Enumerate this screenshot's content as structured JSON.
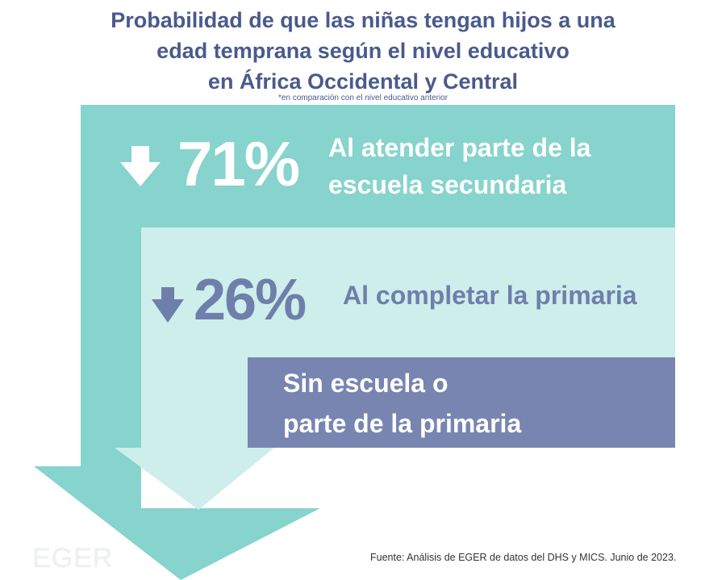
{
  "title": {
    "line1": "Probabilidad de que las niñas tengan hijos a una",
    "line2": "edad temprana según el nivel educativo",
    "line3": "en África Occidental y Central"
  },
  "subtitle": "*en comparación con el nivel educativo anterior",
  "levels": [
    {
      "percent": "71%",
      "trend": "down",
      "label_line1": "Al atender parte de la",
      "label_line2": "escuela secundaria",
      "color": "#87d3cd"
    },
    {
      "percent": "26%",
      "trend": "down",
      "label_line1": "Al completar la primaria",
      "color": "#cdeeea"
    },
    {
      "label_line1": "Sin escuela o",
      "label_line2": "parte de la primaria",
      "color": "#7885b1"
    }
  ],
  "icons": [
    "arrow-down-icon",
    "arrow-down-icon"
  ],
  "logo": "EGER",
  "source": "Fuente: Análisis de EGER de datos del DHS y MICS. Junio de 2023."
}
